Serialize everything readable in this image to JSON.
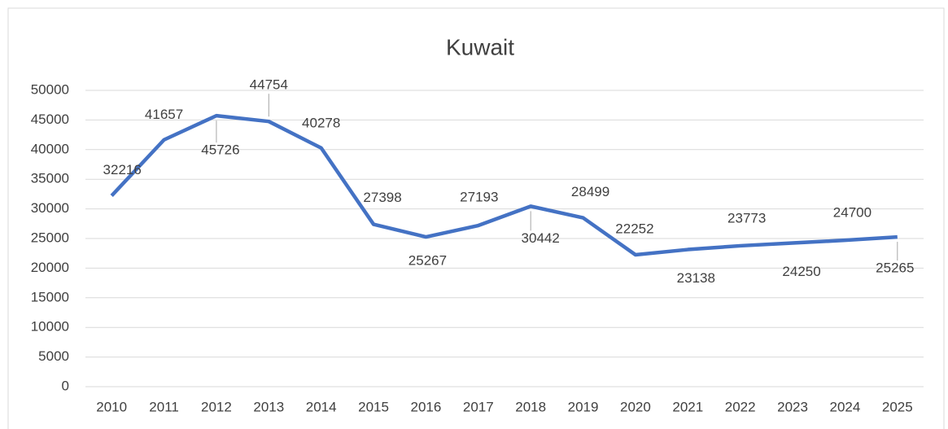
{
  "chart_data": {
    "type": "line",
    "title": "Kuwait",
    "categories": [
      "2010",
      "2011",
      "2012",
      "2013",
      "2014",
      "2015",
      "2016",
      "2017",
      "2018",
      "2019",
      "2020",
      "2021",
      "2022",
      "2023",
      "2024",
      "2025"
    ],
    "series": [
      {
        "name": "Kuwait",
        "color": "#4472c4",
        "values": [
          32216,
          41657,
          45726,
          44754,
          40278,
          27398,
          25267,
          27193,
          30442,
          28499,
          22252,
          23138,
          23773,
          24250,
          24700,
          25265
        ]
      }
    ],
    "ylim": [
      0,
      50000
    ],
    "yticks": [
      0,
      5000,
      10000,
      15000,
      20000,
      25000,
      30000,
      35000,
      40000,
      45000,
      50000
    ],
    "grid": true
  }
}
